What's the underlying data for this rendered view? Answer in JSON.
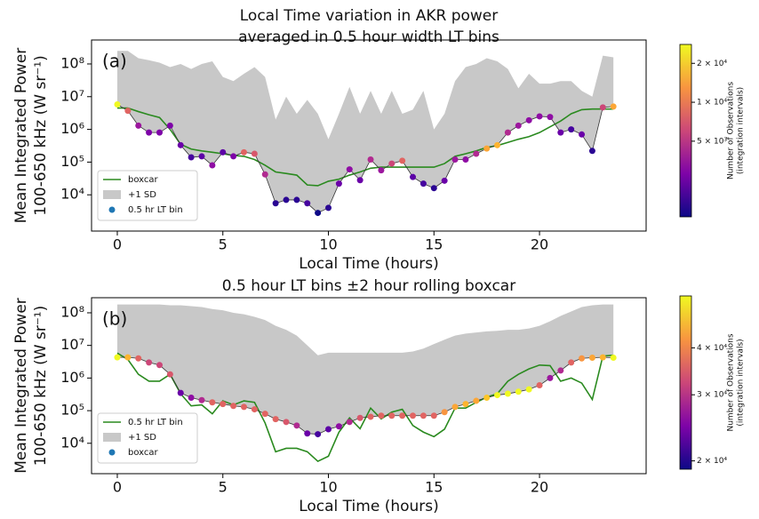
{
  "chart_data": [
    {
      "type": "scatter",
      "panel_label": "(a)",
      "title": [
        "Local Time variation in AKR power",
        "averaged in 0.5 hour width LT bins"
      ],
      "xlabel": "Local Time (hours)",
      "ylabel": [
        "Mean Integrated Power",
        "100-650 kHz (W sr⁻¹)"
      ],
      "log_y": true,
      "xlim": [
        -1.22,
        25.05
      ],
      "ylim": [
        780,
        540000000
      ],
      "xticks": [
        0,
        5,
        10,
        15,
        20
      ],
      "yticks": [
        {
          "value": 10000,
          "label": "10⁴"
        },
        {
          "value": 100000,
          "label": "10⁵"
        },
        {
          "value": 1000000,
          "label": "10⁶"
        },
        {
          "value": 10000000,
          "label": "10⁷"
        },
        {
          "value": 100000000,
          "label": "10⁸"
        }
      ],
      "legend": "lower left",
      "x": [
        0,
        0.5,
        1,
        1.5,
        2,
        2.5,
        3,
        3.5,
        4,
        4.5,
        5,
        5.5,
        6,
        6.5,
        7,
        7.5,
        8,
        8.5,
        9,
        9.5,
        10,
        10.5,
        11,
        11.5,
        12,
        12.5,
        13,
        13.5,
        14,
        14.5,
        15,
        15.5,
        16,
        16.5,
        17,
        17.5,
        18,
        18.5,
        19,
        19.5,
        20,
        20.5,
        21,
        21.5,
        22,
        22.5,
        23,
        23.5
      ],
      "series": [
        {
          "name": "boxcar",
          "kind": "line",
          "color": "#2a8a1f",
          "values": [
            4500000,
            4500000,
            3500000,
            2800000,
            2300000,
            1000000,
            350000,
            250000,
            220000,
            200000,
            180000,
            160000,
            150000,
            120000,
            80000,
            50000,
            45000,
            40000,
            20000,
            19000,
            26000,
            30000,
            40000,
            50000,
            65000,
            70000,
            70000,
            70000,
            70000,
            70000,
            70000,
            90000,
            150000,
            180000,
            220000,
            280000,
            320000,
            400000,
            500000,
            600000,
            800000,
            1200000,
            1800000,
            3000000,
            4000000,
            4200000,
            4200000,
            4200000
          ]
        },
        {
          "name": "+1 SD",
          "kind": "area",
          "color": "#c8c8c8",
          "values": [
            250000000,
            250000000,
            150000000,
            130000000,
            110000000,
            80000000,
            100000000,
            70000000,
            100000000,
            120000000,
            40000000,
            30000000,
            50000000,
            80000000,
            40000000,
            2000000,
            10000000,
            3000000,
            8000000,
            3000000,
            500000,
            3000000,
            20000000,
            3000000,
            15000000,
            3000000,
            15000000,
            3000000,
            4000000,
            15000000,
            1000000,
            3000000,
            30000000,
            80000000,
            100000000,
            150000000,
            120000000,
            70000000,
            18000000,
            50000000,
            25000000,
            25000000,
            30000000,
            30000000,
            15000000,
            10000000,
            180000000,
            160000000
          ]
        },
        {
          "name": "0.5 hr LT bin",
          "kind": "scatter",
          "color": "#1f77b4",
          "values": [
            5800000,
            3700000,
            1300000,
            800000,
            800000,
            1300000,
            330000,
            140000,
            150000,
            80000,
            200000,
            150000,
            200000,
            180000,
            42000,
            5500,
            7000,
            7000,
            5500,
            2800,
            4000,
            22000,
            60000,
            28000,
            120000,
            56000,
            90000,
            110000,
            35000,
            22000,
            16000,
            27000,
            120000,
            120000,
            180000,
            260000,
            330000,
            800000,
            1300000,
            1900000,
            2500000,
            2400000,
            800000,
            1000000,
            700000,
            220000,
            4700000,
            5000000
          ],
          "point_colors": [
            "#f0f921",
            "#e16462",
            "#9c179e",
            "#7e03a8",
            "#7e03a8",
            "#7e03a8",
            "#6a00a8",
            "#46039f",
            "#5c01a6",
            "#8f0da4",
            "#5c01a6",
            "#7e03a8",
            "#e16462",
            "#d8576b",
            "#b12a90",
            "#2a0593",
            "#2a0593",
            "#2a0593",
            "#46039f",
            "#0d0887",
            "#2a0593",
            "#6a00a8",
            "#8f0da4",
            "#6a00a8",
            "#b12a90",
            "#9c179e",
            "#cc4778",
            "#e16462",
            "#5c01a6",
            "#46039f",
            "#2a0593",
            "#6a00a8",
            "#9c179e",
            "#8f0da4",
            "#b12a90",
            "#fca636",
            "#fdb42f",
            "#b12a90",
            "#9c179e",
            "#8f0da4",
            "#8f0da4",
            "#8f0da4",
            "#6a00a8",
            "#46039f",
            "#6a00a8",
            "#2a0593",
            "#cc4778",
            "#fca636"
          ]
        }
      ],
      "colorbar": {
        "label": [
          "Number of Observations",
          "(integration intervals)"
        ],
        "log": true,
        "clim": [
          1300,
          28000
        ],
        "ticks": [
          {
            "value": 5000,
            "label": "5 × 10³"
          },
          {
            "value": 10000,
            "label": "1 × 10⁴"
          },
          {
            "value": 20000,
            "label": "2 × 10⁴"
          }
        ]
      }
    },
    {
      "type": "scatter",
      "panel_label": "(b)",
      "title": [
        "0.5 hour LT bins ±2 hour rolling boxcar"
      ],
      "xlabel": "Local Time (hours)",
      "ylabel": [
        "Mean Integrated Power",
        "100-650 kHz (W sr⁻¹)"
      ],
      "log_y": true,
      "xlim": [
        -1.22,
        25.05
      ],
      "ylim": [
        1170,
        290000000
      ],
      "xticks": [
        0,
        5,
        10,
        15,
        20
      ],
      "yticks": [
        {
          "value": 10000,
          "label": "10⁴"
        },
        {
          "value": 100000,
          "label": "10⁵"
        },
        {
          "value": 1000000,
          "label": "10⁶"
        },
        {
          "value": 10000000,
          "label": "10⁷"
        },
        {
          "value": 100000000,
          "label": "10⁸"
        }
      ],
      "legend": "lower left",
      "x": [
        0,
        0.5,
        1,
        1.5,
        2,
        2.5,
        3,
        3.5,
        4,
        4.5,
        5,
        5.5,
        6,
        6.5,
        7,
        7.5,
        8,
        8.5,
        9,
        9.5,
        10,
        10.5,
        11,
        11.5,
        12,
        12.5,
        13,
        13.5,
        14,
        14.5,
        15,
        15.5,
        16,
        16.5,
        17,
        17.5,
        18,
        18.5,
        19,
        19.5,
        20,
        20.5,
        21,
        21.5,
        22,
        22.5,
        23,
        23.5
      ],
      "series": [
        {
          "name": "0.5 hr LT bin",
          "kind": "line",
          "color": "#2a8a1f",
          "values": [
            5800000,
            3700000,
            1300000,
            800000,
            800000,
            1300000,
            330000,
            140000,
            150000,
            80000,
            200000,
            150000,
            200000,
            180000,
            42000,
            5500,
            7000,
            7000,
            5500,
            2800,
            4000,
            22000,
            60000,
            28000,
            120000,
            56000,
            90000,
            110000,
            35000,
            22000,
            16000,
            27000,
            120000,
            120000,
            180000,
            260000,
            330000,
            800000,
            1300000,
            1900000,
            2500000,
            2400000,
            800000,
            1000000,
            700000,
            220000,
            4700000,
            5000000
          ]
        },
        {
          "name": "+1 SD",
          "kind": "area",
          "color": "#c8c8c8",
          "values": [
            180000000,
            180000000,
            180000000,
            180000000,
            180000000,
            170000000,
            170000000,
            160000000,
            150000000,
            130000000,
            120000000,
            100000000,
            90000000,
            75000000,
            60000000,
            40000000,
            30000000,
            20000000,
            10000000,
            5000000,
            6000000,
            6000000,
            6000000,
            6000000,
            6000000,
            6000000,
            6000000,
            6000000,
            6500000,
            8000000,
            11000000,
            15000000,
            20000000,
            23000000,
            25000000,
            27000000,
            28000000,
            30000000,
            30000000,
            33000000,
            40000000,
            55000000,
            80000000,
            110000000,
            150000000,
            170000000,
            180000000,
            180000000
          ]
        },
        {
          "name": "boxcar",
          "kind": "scatter",
          "color": "#1f77b4",
          "values": [
            4300000,
            4300000,
            4000000,
            3000000,
            2500000,
            1300000,
            350000,
            250000,
            210000,
            180000,
            160000,
            140000,
            130000,
            110000,
            80000,
            55000,
            45000,
            35000,
            20000,
            19000,
            27000,
            33000,
            45000,
            60000,
            65000,
            70000,
            70000,
            70000,
            70000,
            70000,
            70000,
            90000,
            130000,
            160000,
            200000,
            250000,
            300000,
            330000,
            380000,
            450000,
            600000,
            1000000,
            1700000,
            3000000,
            4000000,
            4200000,
            4300000,
            4200000
          ],
          "point_colors": [
            "#f0f921",
            "#fdb42f",
            "#e16462",
            "#cc4778",
            "#cc4778",
            "#d8576b",
            "#6a00a8",
            "#8f0da4",
            "#b12a90",
            "#e16462",
            "#e16462",
            "#e16462",
            "#e16462",
            "#e16462",
            "#e16462",
            "#e16462",
            "#d8576b",
            "#b12a90",
            "#6a00a8",
            "#46039f",
            "#5c01a6",
            "#8f0da4",
            "#b12a90",
            "#d8576b",
            "#e16462",
            "#e16462",
            "#e16462",
            "#e16462",
            "#e16462",
            "#e16462",
            "#e16462",
            "#f89540",
            "#fca636",
            "#fdb42f",
            "#fca636",
            "#fdc527",
            "#f0f921",
            "#f0f921",
            "#f0f921",
            "#f0f921",
            "#e16462",
            "#9c179e",
            "#b12a90",
            "#e16462",
            "#f89540",
            "#fca636",
            "#fdb42f",
            "#f0f921"
          ]
        }
      ],
      "colorbar": {
        "label": [
          "Number of Observations",
          "(integration intervals)"
        ],
        "log": true,
        "clim": [
          19000,
          55000
        ],
        "ticks": [
          {
            "value": 20000,
            "label": "2 × 10⁴"
          },
          {
            "value": 30000,
            "label": "3 × 10⁴"
          },
          {
            "value": 40000,
            "label": "4 × 10⁴"
          }
        ]
      }
    }
  ]
}
